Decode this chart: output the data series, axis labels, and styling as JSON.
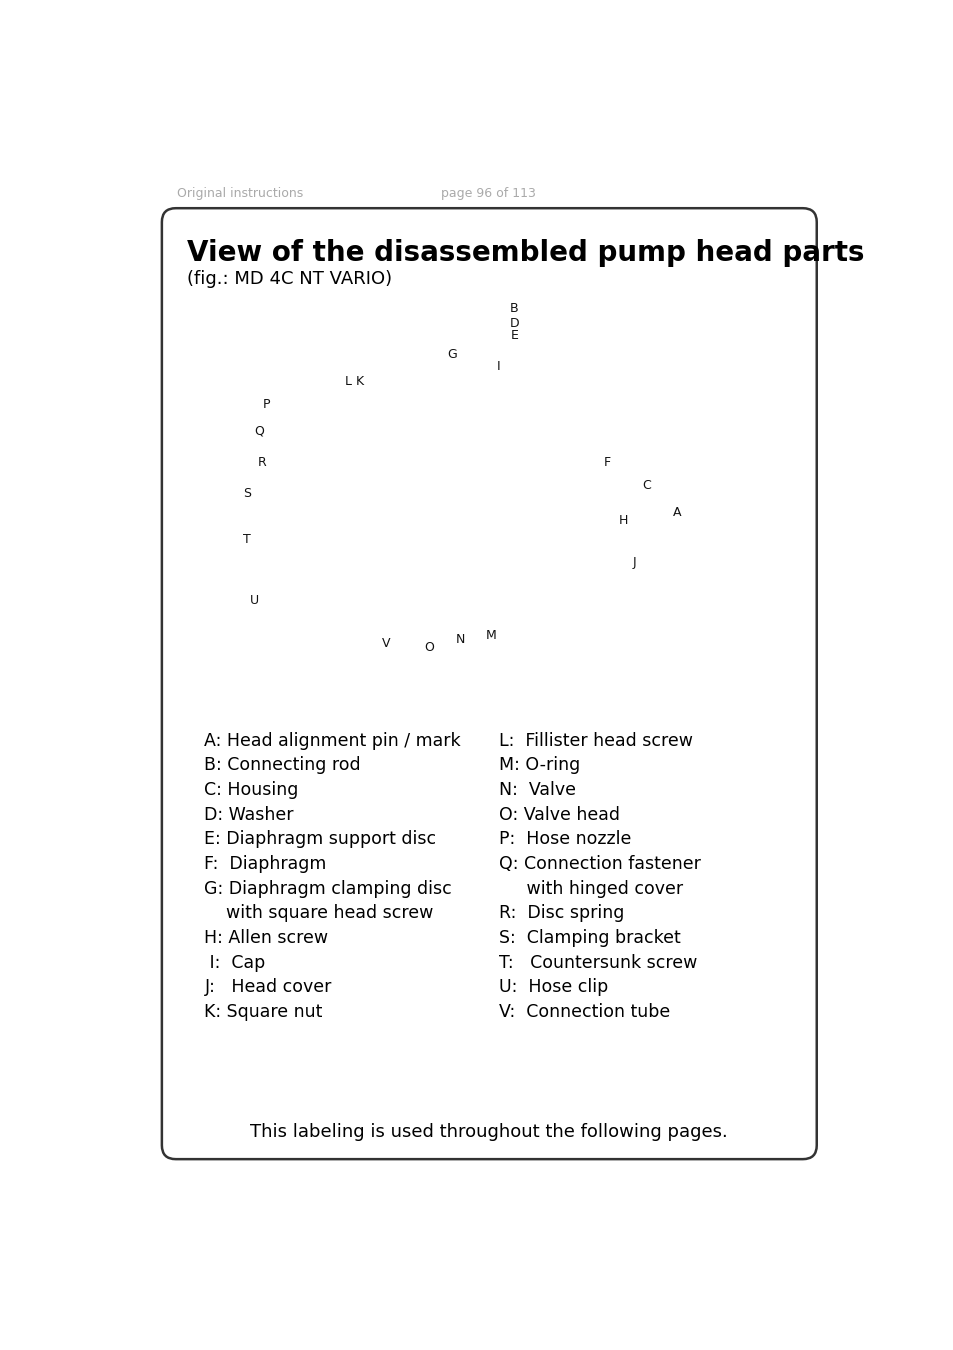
{
  "page_header_left": "Original instructions",
  "page_header_center": "page 96 of 113",
  "title": "View of the disassembled pump head parts",
  "subtitle": "(fig.: MD 4C NT VARIO)",
  "legend_left": [
    "A: Head alignment pin / mark",
    "B: Connecting rod",
    "C: Housing",
    "D: Washer",
    "E: Diaphragm support disc",
    "F:  Diaphragm",
    "G: Diaphragm clamping disc",
    "    with square head screw",
    "H: Allen screw",
    " I:  Cap",
    "J:   Head cover",
    "K: Square nut"
  ],
  "legend_right": [
    "L:  Fillister head screw",
    "M: O-ring",
    "N:  Valve",
    "O: Valve head",
    "P:  Hose nozzle",
    "Q: Connection fastener",
    "     with hinged cover",
    "R:  Disc spring",
    "S:  Clamping bracket",
    "T:   Countersunk screw",
    "U:  Hose clip",
    "V:  Connection tube"
  ],
  "footer": "This labeling is used throughout the following pages.",
  "bg_color": "#ffffff",
  "header_color": "#aaaaaa",
  "text_color": "#000000",
  "border_color": "#333333"
}
